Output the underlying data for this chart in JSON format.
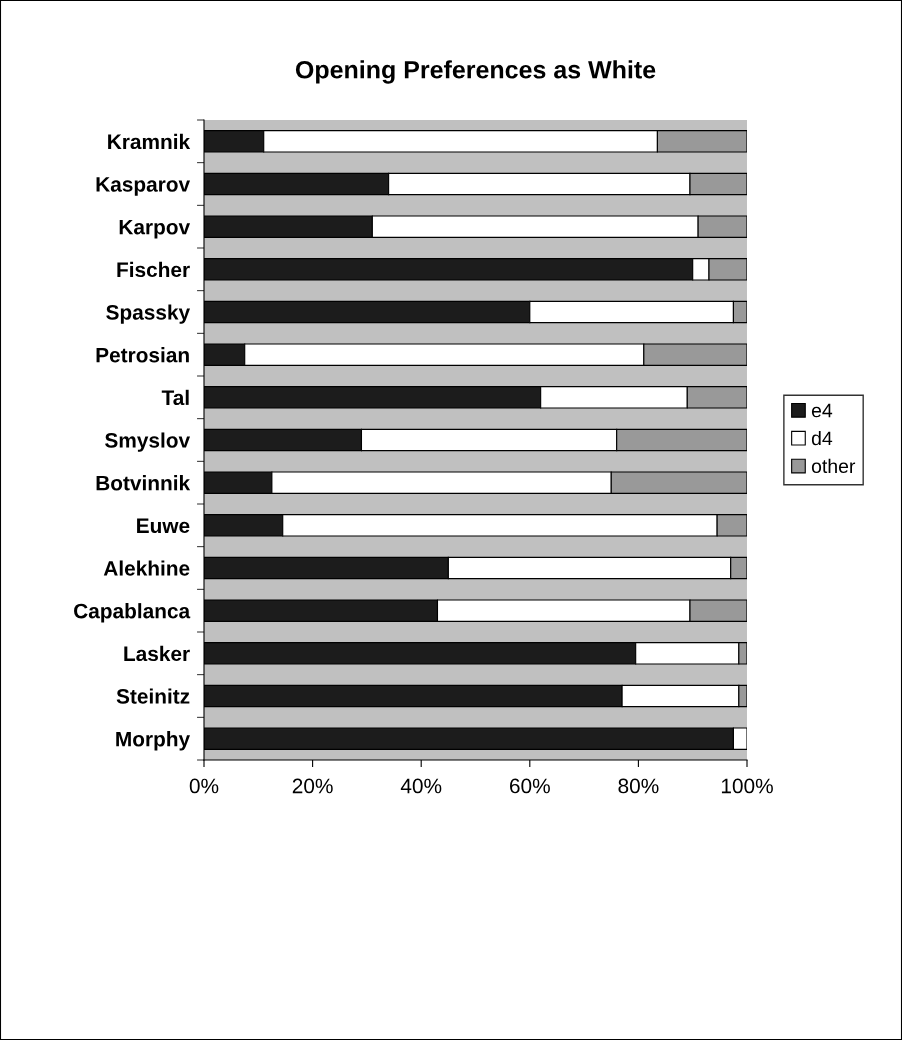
{
  "chart_data": {
    "type": "bar",
    "orientation": "horizontal",
    "stacked": true,
    "title": "Opening Preferences as White",
    "categories": [
      "Kramnik",
      "Kasparov",
      "Karpov",
      "Fischer",
      "Spassky",
      "Petrosian",
      "Tal",
      "Smyslov",
      "Botvinnik",
      "Euwe",
      "Alekhine",
      "Capablanca",
      "Lasker",
      "Steinitz",
      "Morphy"
    ],
    "series": [
      {
        "name": "e4",
        "color": "#1c1c1c",
        "values": [
          11,
          34,
          31,
          90,
          60,
          7.5,
          62,
          29,
          12.5,
          14.5,
          45,
          43,
          79.5,
          77,
          97.5
        ]
      },
      {
        "name": "d4",
        "color": "#ffffff",
        "values": [
          72.5,
          55.5,
          60,
          3,
          37.5,
          73.5,
          27,
          47,
          62.5,
          80,
          52,
          46.5,
          19,
          21.5,
          2.5
        ]
      },
      {
        "name": "other",
        "color": "#999999",
        "values": [
          16.5,
          10.5,
          9,
          7,
          2.5,
          19,
          11,
          24,
          25,
          5.5,
          3,
          10.5,
          1.5,
          1.5,
          0
        ]
      }
    ],
    "xlim": [
      0,
      100
    ],
    "xticks": [
      {
        "value": 0,
        "label": "0%"
      },
      {
        "value": 20,
        "label": "20%"
      },
      {
        "value": 40,
        "label": "40%"
      },
      {
        "value": 60,
        "label": "60%"
      },
      {
        "value": 80,
        "label": "80%"
      },
      {
        "value": 100,
        "label": "100%"
      }
    ],
    "grid": false,
    "legend": "right"
  }
}
